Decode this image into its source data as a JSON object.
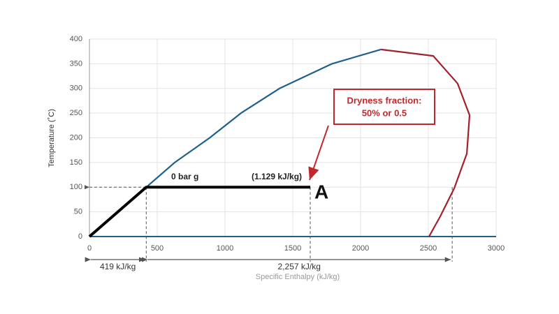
{
  "chart_data": {
    "type": "line",
    "xlabel": "Specific Enthalpy (kJ/kg)",
    "ylabel": "Temperature (˚C)",
    "xlim": [
      0,
      3000
    ],
    "xticks": [
      0,
      500,
      1000,
      1500,
      2000,
      2500,
      3000
    ],
    "ylim": [
      0,
      400
    ],
    "yticks": [
      0,
      50,
      100,
      150,
      200,
      250,
      300,
      350,
      400
    ],
    "grid": true,
    "series": [
      {
        "color": "#1f5f8b",
        "x": [
          419,
          629,
          887,
          1118,
          1402,
          1789,
          2150
        ],
        "values": [
          100,
          150,
          200,
          250,
          300,
          350,
          379
        ]
      },
      {
        "color": "#a3212b",
        "x": [
          2150,
          2536,
          2716,
          2804,
          2784,
          2691,
          2588,
          2505
        ],
        "values": [
          379,
          366,
          310,
          246,
          168,
          98,
          41,
          0
        ]
      },
      {
        "color": "#000000",
        "x": [
          0,
          419,
          1629
        ],
        "values": [
          0,
          100,
          100
        ]
      }
    ],
    "dimensions": [
      {
        "from": 0,
        "to": 419,
        "label": "419 kJ/kg"
      },
      {
        "from": 419,
        "to": 2676,
        "label": "2,257 kJ/kg"
      }
    ],
    "annotations": [
      "0 bar g",
      "(1.129 kJ/kg)",
      "A"
    ],
    "callout": [
      "Dryness fraction:",
      "50% or 0.5"
    ]
  }
}
